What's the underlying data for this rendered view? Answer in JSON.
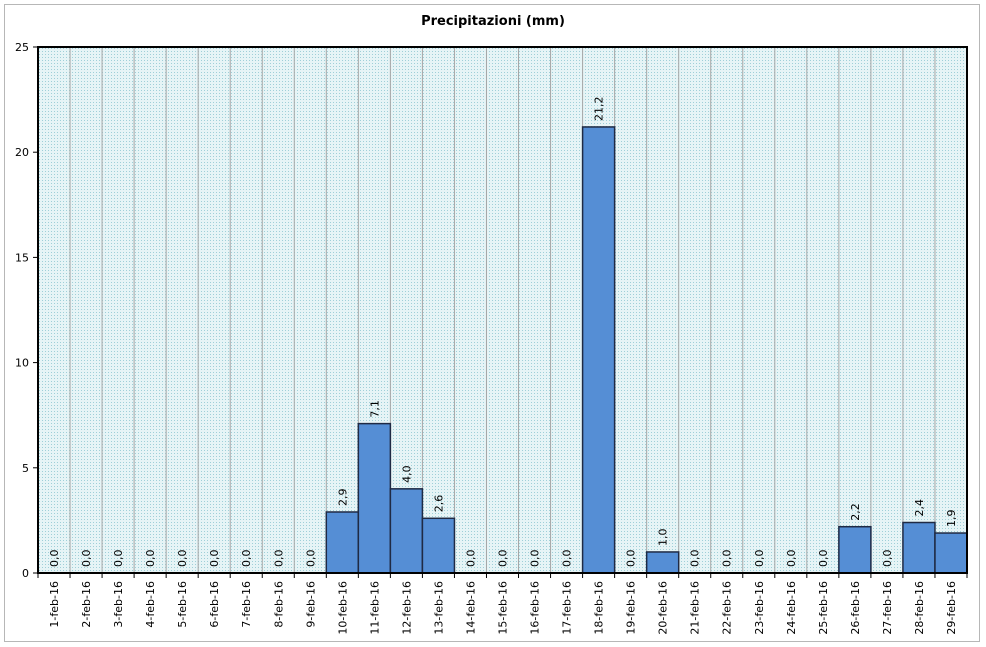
{
  "chart_data": {
    "type": "bar",
    "title": "Precipitazioni (mm)",
    "xlabel": "",
    "ylabel": "",
    "ylim": [
      0,
      25
    ],
    "yticks": [
      "0",
      "5",
      "10",
      "15",
      "20",
      "25"
    ],
    "grid": true,
    "categories": [
      "1-feb-16",
      "2-feb-16",
      "3-feb-16",
      "4-feb-16",
      "5-feb-16",
      "6-feb-16",
      "7-feb-16",
      "8-feb-16",
      "9-feb-16",
      "10-feb-16",
      "11-feb-16",
      "12-feb-16",
      "13-feb-16",
      "14-feb-16",
      "15-feb-16",
      "16-feb-16",
      "17-feb-16",
      "18-feb-16",
      "19-feb-16",
      "20-feb-16",
      "21-feb-16",
      "22-feb-16",
      "23-feb-16",
      "24-feb-16",
      "25-feb-16",
      "26-feb-16",
      "27-feb-16",
      "28-feb-16",
      "29-feb-16"
    ],
    "values": [
      0,
      0,
      0,
      0,
      0,
      0,
      0,
      0,
      0,
      2.9,
      7.1,
      4.0,
      2.6,
      0,
      0,
      0,
      0,
      21.2,
      0,
      1.0,
      0,
      0,
      0,
      0,
      0,
      2.2,
      0,
      2.4,
      1.9
    ],
    "data_labels": [
      "0,0",
      "0,0",
      "0,0",
      "0,0",
      "0,0",
      "0,0",
      "0,0",
      "0,0",
      "0,0",
      "2,9",
      "7,1",
      "4,0",
      "2,6",
      "0,0",
      "0,0",
      "0,0",
      "0,0",
      "21,2",
      "0,0",
      "1,0",
      "0,0",
      "0,0",
      "0,0",
      "0,0",
      "0,0",
      "2,2",
      "0,0",
      "2,4",
      "1,9"
    ],
    "colors": {
      "bar": "#558ed5",
      "bar_border": "#1f2a44",
      "plot_bg": "#d9eef2",
      "grid": "#a6a6a6"
    }
  }
}
